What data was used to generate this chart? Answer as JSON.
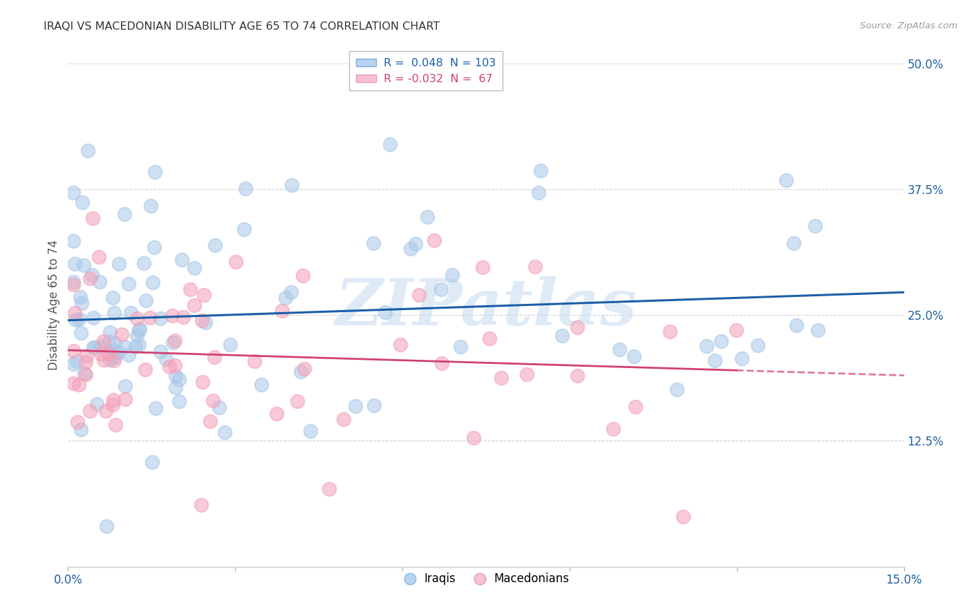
{
  "title": "IRAQI VS MACEDONIAN DISABILITY AGE 65 TO 74 CORRELATION CHART",
  "source": "Source: ZipAtlas.com",
  "ylabel": "Disability Age 65 to 74",
  "watermark": "ZIPatlas",
  "xlim": [
    0.0,
    0.15
  ],
  "ylim": [
    0.0,
    0.52
  ],
  "xtick_positions": [
    0.0,
    0.03,
    0.06,
    0.09,
    0.12,
    0.15
  ],
  "xtick_labels": [
    "0.0%",
    "",
    "",
    "",
    "",
    "15.0%"
  ],
  "ytick_positions": [
    0.0,
    0.125,
    0.25,
    0.375,
    0.5
  ],
  "ytick_labels": [
    "",
    "12.5%",
    "25.0%",
    "37.5%",
    "50.0%"
  ],
  "blue_color": "#a8c8e8",
  "pink_color": "#f4a0b8",
  "blue_line_color": "#1a5ea8",
  "pink_line_color": "#d04070",
  "legend_blue_label": "R =  0.048  N = 103",
  "legend_pink_label": "R = -0.032  N =  67",
  "iraqis_label": "Iraqis",
  "macedonians_label": "Macedonians",
  "title_color": "#333333",
  "axis_label_color": "#2060a0",
  "grid_color": "#cccccc",
  "background_color": "#ffffff",
  "watermark_color": "#c8ddf0",
  "source_color": "#999999"
}
